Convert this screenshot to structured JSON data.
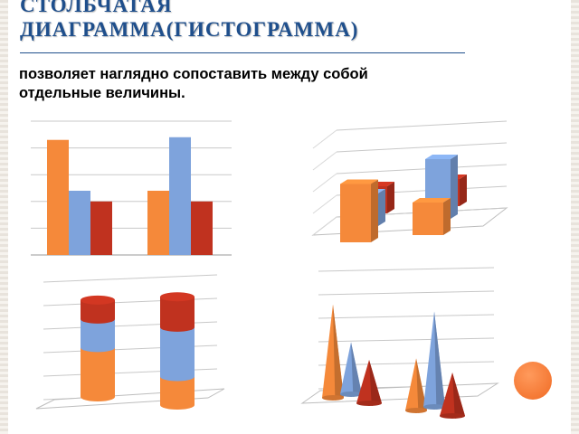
{
  "slide": {
    "title_line1": "СТОЛБЧАТАЯ",
    "title_line2": "ДИАГРАММА(ГИСТОГРАММА)",
    "description_line1": "позволяет наглядно сопоставить между собой",
    "description_line2": "отдельные величины."
  },
  "colors": {
    "orange": "#f5893a",
    "blue": "#7ea3dc",
    "red": "#c0321f",
    "title": "#1f4f8c",
    "accent_dot": "#f06a23"
  },
  "chart_data": [
    {
      "type": "bar",
      "style": "2d-clustered",
      "categories": [
        "",
        ""
      ],
      "series": [
        {
          "values": [
            4.3,
            2.4
          ]
        },
        {
          "values": [
            2.4,
            4.4
          ]
        },
        {
          "values": [
            2.0,
            2.0
          ]
        }
      ],
      "ylim": [
        0,
        5
      ],
      "grid": true
    },
    {
      "type": "bar",
      "style": "3d-column",
      "categories": [
        "",
        ""
      ],
      "series": [
        {
          "values": [
            4.3,
            2.4
          ]
        },
        {
          "values": [
            2.4,
            4.4
          ]
        },
        {
          "values": [
            2.0,
            2.0
          ]
        }
      ],
      "grid": true
    },
    {
      "type": "bar",
      "style": "3d-stacked-cylinder",
      "categories": [
        "",
        ""
      ],
      "series": [
        {
          "values": [
            2.6,
            1.5
          ]
        },
        {
          "values": [
            1.5,
            2.6
          ]
        },
        {
          "values": [
            1.0,
            1.6
          ]
        }
      ],
      "grid": true
    },
    {
      "type": "bar",
      "style": "3d-cone",
      "categories": [
        "",
        ""
      ],
      "series": [
        {
          "values": [
            4.3,
            2.4
          ]
        },
        {
          "values": [
            2.4,
            4.4
          ]
        },
        {
          "values": [
            2.0,
            2.0
          ]
        }
      ],
      "grid": true
    }
  ]
}
